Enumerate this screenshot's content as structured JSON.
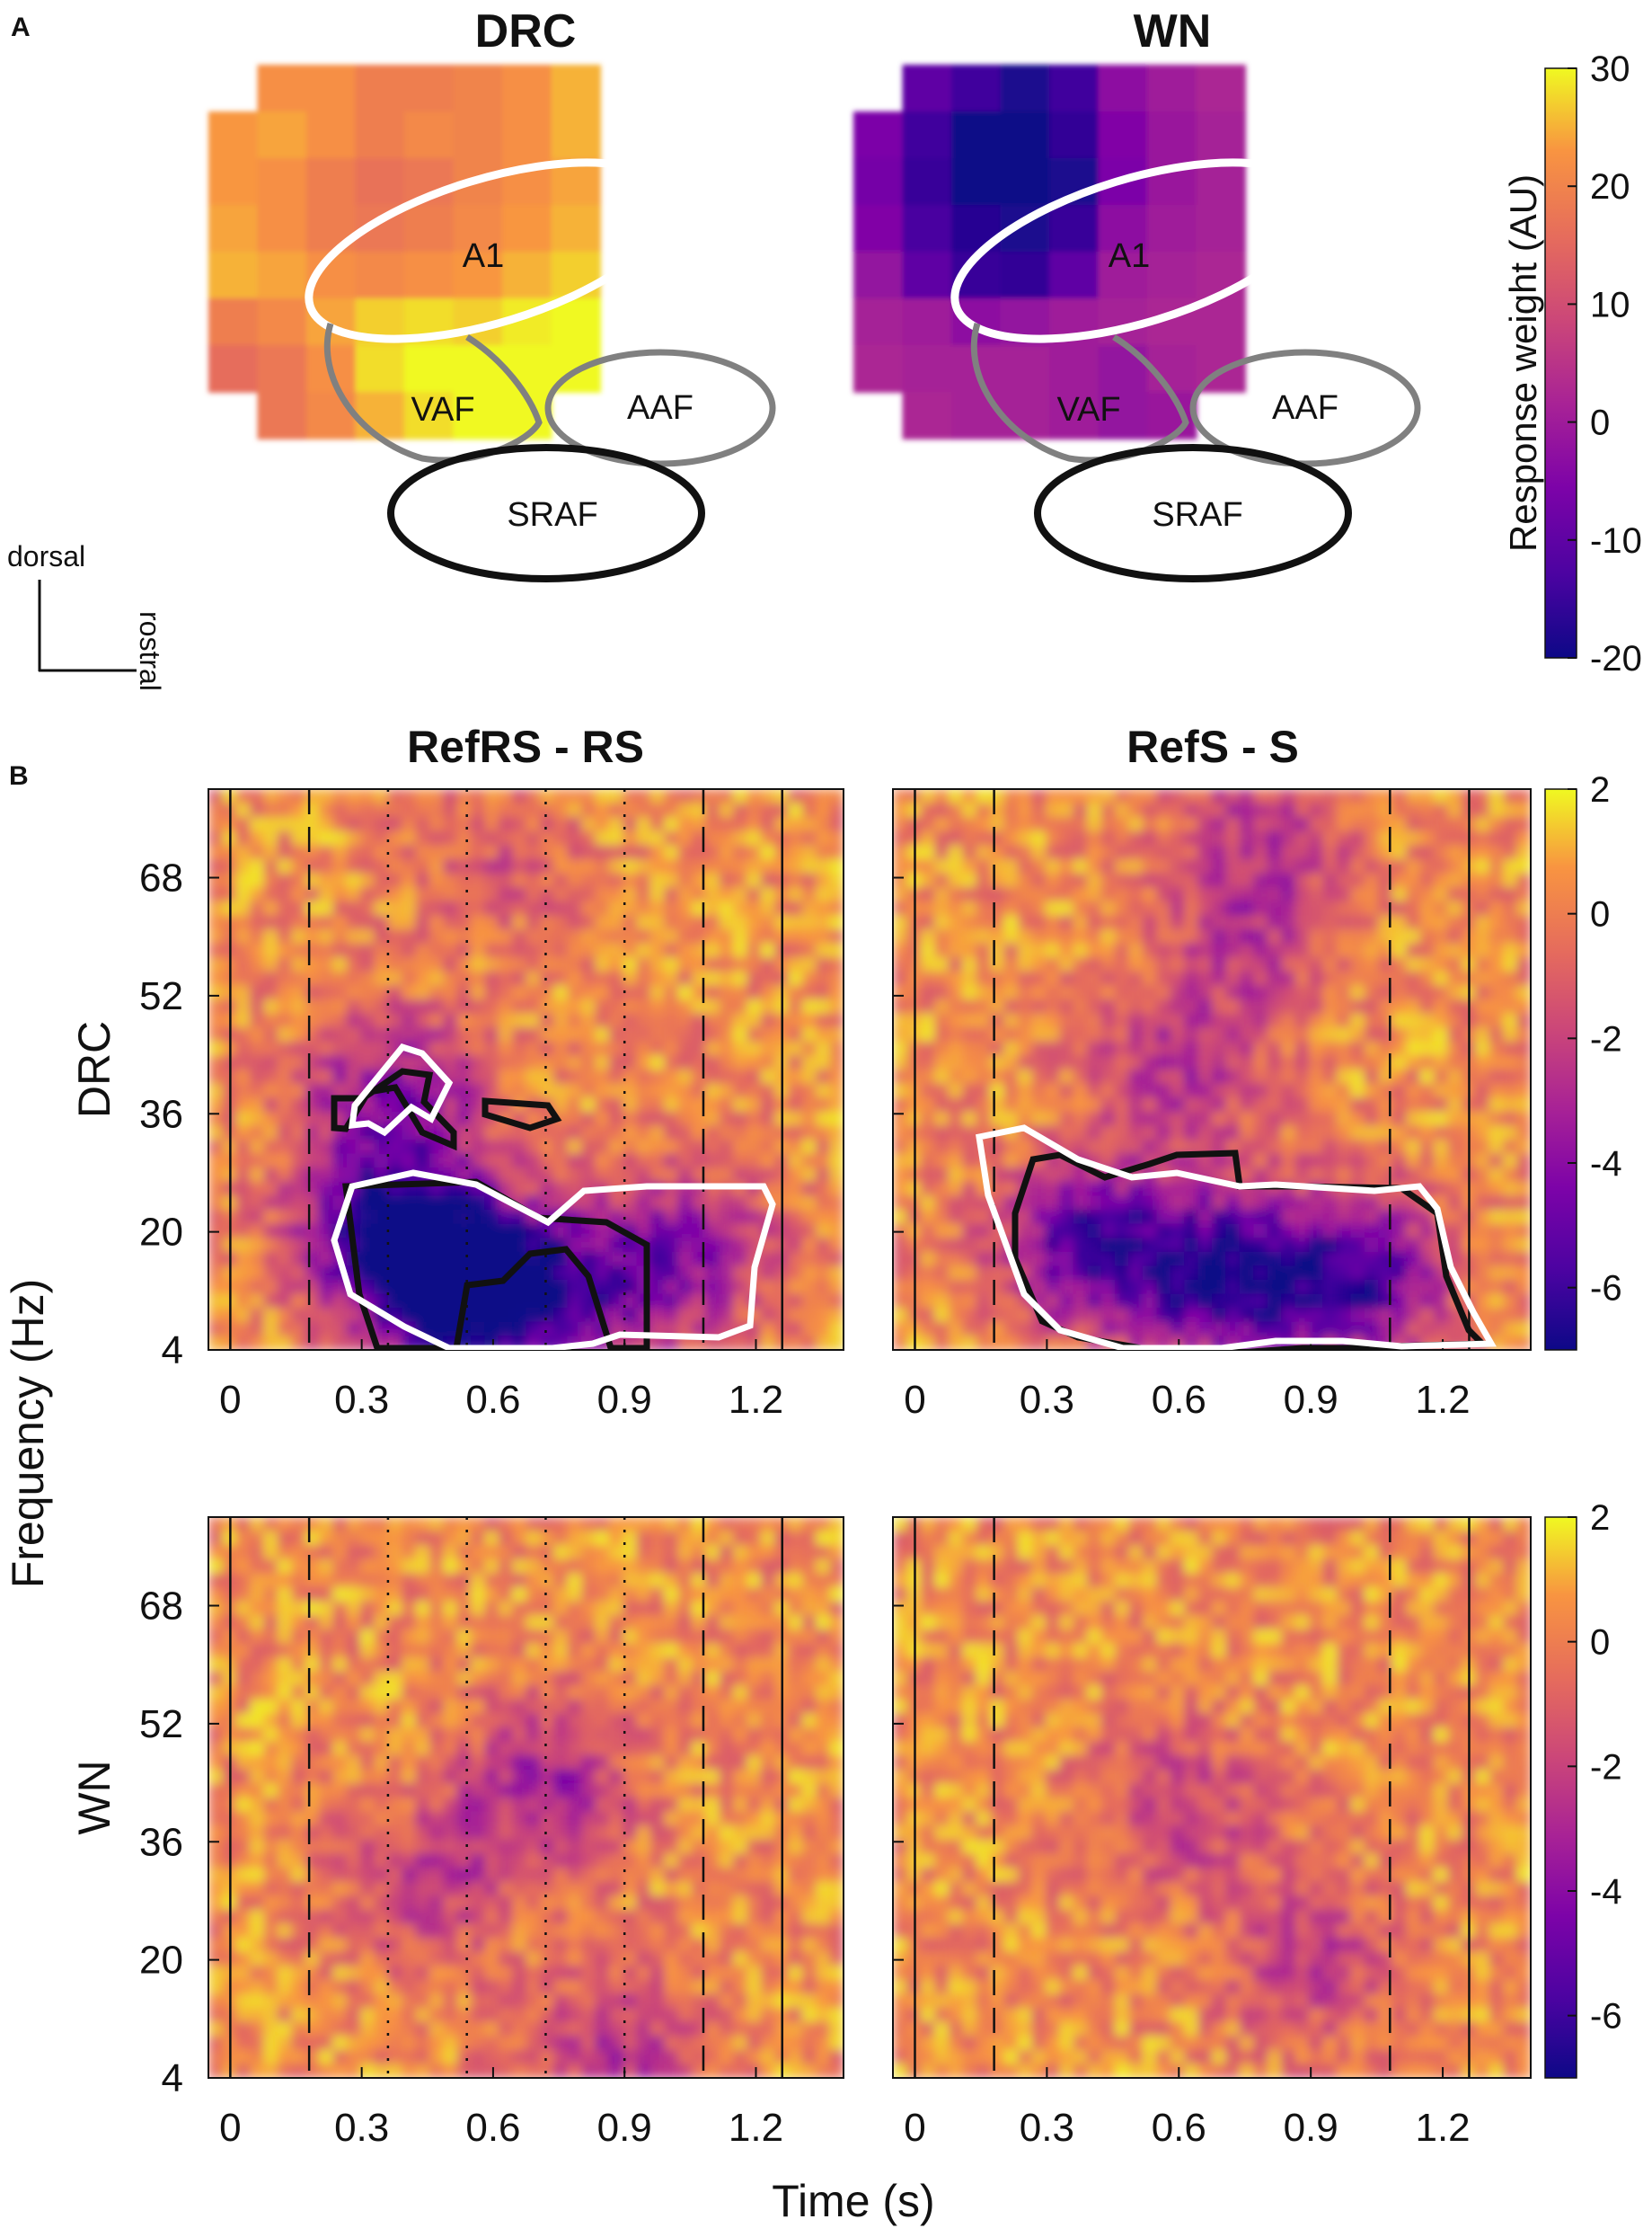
{
  "panel_a": {
    "letter": "A",
    "orientation": {
      "vertical": "dorsal",
      "horizontal": "rostral"
    },
    "colorbar": {
      "label": "Response weight (AU)",
      "min": -20,
      "max": 30,
      "ticks": [
        30,
        20,
        10,
        0,
        -10,
        -20
      ]
    },
    "maps": [
      {
        "title": "DRC",
        "regions": [
          "A1",
          "VAF",
          "AAF",
          "SRAF"
        ]
      },
      {
        "title": "WN",
        "regions": [
          "A1",
          "VAF",
          "AAF",
          "SRAF"
        ]
      }
    ]
  },
  "panel_b": {
    "letter": "B",
    "col_titles": [
      "RefRS - RS",
      "RefS - S"
    ],
    "row_labels": [
      "DRC",
      "WN"
    ],
    "ylabel": "Frequency (Hz)",
    "xlabel": "Time (s)",
    "colorbar": {
      "min": -7,
      "max": 2,
      "ticks": [
        2,
        0,
        -2,
        -4,
        -6
      ]
    }
  },
  "chart_data": [
    {
      "type": "heatmap",
      "title": "DRC",
      "grid_rows": 8,
      "grid_cols": 8,
      "values": [
        [
          null,
          22,
          22,
          19,
          19,
          20,
          22,
          25
        ],
        [
          23,
          24,
          22,
          19,
          21,
          20,
          22,
          25
        ],
        [
          23,
          22,
          19,
          17,
          18,
          20,
          22,
          24
        ],
        [
          24,
          22,
          19,
          18,
          19,
          21,
          23,
          25
        ],
        [
          25,
          24,
          22,
          21,
          22,
          23,
          25,
          27
        ],
        [
          19,
          21,
          24,
          27,
          28,
          27,
          29,
          30
        ],
        [
          16,
          18,
          22,
          28,
          30,
          30,
          30,
          30
        ],
        [
          null,
          18,
          21,
          25,
          28,
          30,
          30,
          null
        ]
      ],
      "regions": [
        "A1",
        "VAF",
        "AAF",
        "SRAF"
      ]
    },
    {
      "type": "heatmap",
      "title": "WN",
      "grid_rows": 8,
      "grid_cols": 8,
      "values": [
        [
          null,
          -10,
          -14,
          -18,
          -14,
          -3,
          0,
          2
        ],
        [
          -6,
          -14,
          -20,
          -20,
          -16,
          -5,
          -1,
          1
        ],
        [
          -7,
          -15,
          -20,
          -20,
          -18,
          -6,
          -1,
          1
        ],
        [
          -5,
          -13,
          -17,
          -18,
          -15,
          -3,
          0,
          1
        ],
        [
          -2,
          -10,
          -15,
          -16,
          -10,
          0,
          1,
          2
        ],
        [
          1,
          0,
          -3,
          -2,
          0,
          1,
          2,
          2
        ],
        [
          2,
          1,
          1,
          1,
          0,
          -2,
          1,
          2
        ],
        [
          null,
          2,
          1,
          1,
          0,
          -2,
          -1,
          null
        ]
      ],
      "regions": [
        "A1",
        "VAF",
        "AAF",
        "SRAF"
      ]
    },
    {
      "type": "heatmap",
      "title": "RefRS - RS",
      "row": "DRC",
      "xlabel": "Time (s)",
      "ylabel": "Frequency (Hz)",
      "xlim": [
        -0.05,
        1.4
      ],
      "ylim": [
        4,
        80
      ],
      "xticks": [
        "0",
        "0.3",
        "0.6",
        "0.9",
        "1.2"
      ],
      "yticks": [
        "4",
        "20",
        "36",
        "52",
        "68"
      ],
      "value_range": [
        -7,
        2
      ],
      "markers": {
        "solid": [
          0,
          1.26
        ],
        "dashed": [
          0.18,
          1.08
        ],
        "dotted": [
          0.36,
          0.54,
          0.72,
          0.9
        ]
      },
      "blobs": [
        {
          "t": 0.5,
          "f": 14,
          "v": -6.5
        },
        {
          "t": 0.35,
          "f": 20,
          "v": -6
        },
        {
          "t": 0.38,
          "f": 38,
          "v": -4.5
        },
        {
          "t": 0.62,
          "f": 12,
          "v": -5
        },
        {
          "t": 0.85,
          "f": 12,
          "v": -3.5
        },
        {
          "t": 1.05,
          "f": 18,
          "v": -3.5
        },
        {
          "t": 0.6,
          "f": 70,
          "v": -1.5
        }
      ]
    },
    {
      "type": "heatmap",
      "title": "RefS - S",
      "row": "DRC",
      "xlabel": "Time (s)",
      "ylabel": "Frequency (Hz)",
      "xlim": [
        -0.05,
        1.4
      ],
      "ylim": [
        4,
        80
      ],
      "xticks": [
        "0",
        "0.3",
        "0.6",
        "0.9",
        "1.2"
      ],
      "yticks": [
        "4",
        "20",
        "36",
        "52",
        "68"
      ],
      "value_range": [
        -7,
        2
      ],
      "markers": {
        "solid": [
          0,
          1.26
        ],
        "dashed": [
          0.18,
          1.08
        ],
        "dotted": []
      },
      "blobs": [
        {
          "t": 0.7,
          "f": 14,
          "v": -6.8
        },
        {
          "t": 0.4,
          "f": 18,
          "v": -6
        },
        {
          "t": 1.0,
          "f": 14,
          "v": -6
        },
        {
          "t": 0.6,
          "f": 42,
          "v": -3
        },
        {
          "t": 0.75,
          "f": 60,
          "v": -2.5
        },
        {
          "t": 0.8,
          "f": 75,
          "v": -2.5
        }
      ]
    },
    {
      "type": "heatmap",
      "title": "RefRS - RS",
      "row": "WN",
      "xlabel": "Time (s)",
      "ylabel": "Frequency (Hz)",
      "xlim": [
        -0.05,
        1.4
      ],
      "ylim": [
        4,
        80
      ],
      "xticks": [
        "0",
        "0.3",
        "0.6",
        "0.9",
        "1.2"
      ],
      "yticks": [
        "4",
        "20",
        "36",
        "52",
        "68"
      ],
      "value_range": [
        -7,
        2
      ],
      "markers": {
        "solid": [
          0,
          1.26
        ],
        "dashed": [
          0.18,
          1.08
        ],
        "dotted": [
          0.36,
          0.54,
          0.72,
          0.9
        ]
      },
      "blobs": [
        {
          "t": 0.72,
          "f": 44,
          "v": -3.5
        },
        {
          "t": 0.88,
          "f": 8,
          "v": -3
        },
        {
          "t": 0.45,
          "f": 30,
          "v": -2.5
        }
      ]
    },
    {
      "type": "heatmap",
      "title": "RefS - S",
      "row": "WN",
      "xlabel": "Time (s)",
      "ylabel": "Frequency (Hz)",
      "xlim": [
        -0.05,
        1.4
      ],
      "ylim": [
        4,
        80
      ],
      "xticks": [
        "0",
        "0.3",
        "0.6",
        "0.9",
        "1.2"
      ],
      "yticks": [
        "4",
        "20",
        "36",
        "52",
        "68"
      ],
      "value_range": [
        -7,
        2
      ],
      "markers": {
        "solid": [
          0,
          1.26
        ],
        "dashed": [
          0.18,
          1.08
        ],
        "dotted": []
      },
      "blobs": [
        {
          "t": 0.6,
          "f": 40,
          "v": -2.5
        },
        {
          "t": 0.9,
          "f": 20,
          "v": -2.5
        }
      ]
    }
  ]
}
